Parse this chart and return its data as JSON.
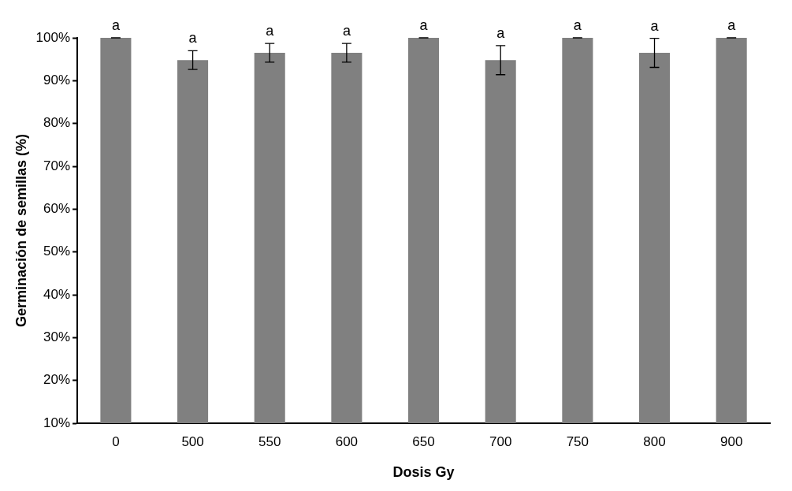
{
  "chart_data": {
    "type": "bar",
    "xlabel": "Dosis Gy",
    "ylabel": "Germinación de semillas (%)",
    "categories": [
      "0",
      "500",
      "550",
      "600",
      "650",
      "700",
      "750",
      "800",
      "900"
    ],
    "values": [
      100,
      94.8,
      96.5,
      96.5,
      100,
      94.8,
      100,
      96.5,
      100
    ],
    "errors": [
      0,
      2.2,
      2.2,
      2.2,
      0,
      3.4,
      0,
      3.4,
      0
    ],
    "color": "#808080",
    "ylim": [
      10,
      100
    ],
    "yticks": [
      {
        "value": 10,
        "label": "10%"
      },
      {
        "value": 20,
        "label": "20%"
      },
      {
        "value": 30,
        "label": "30%"
      },
      {
        "value": 40,
        "label": "40%"
      },
      {
        "value": 50,
        "label": "50%"
      },
      {
        "value": 60,
        "label": "60%"
      },
      {
        "value": 70,
        "label": "70%"
      },
      {
        "value": 80,
        "label": "80%"
      },
      {
        "value": 90,
        "label": "90%"
      },
      {
        "value": 100,
        "label": "100%"
      }
    ],
    "grid": false,
    "legend": false,
    "annotations": [
      {
        "text": "a",
        "x": "0",
        "y": 100
      },
      {
        "text": "a",
        "x": "500",
        "y": 97
      },
      {
        "text": "a",
        "x": "550",
        "y": 98.7
      },
      {
        "text": "a",
        "x": "600",
        "y": 98.7
      },
      {
        "text": "a",
        "x": "650",
        "y": 100
      },
      {
        "text": "a",
        "x": "700",
        "y": 98.2
      },
      {
        "text": "a",
        "x": "750",
        "y": 100
      },
      {
        "text": "a",
        "x": "800",
        "y": 99.9
      },
      {
        "text": "a",
        "x": "900",
        "y": 100
      }
    ]
  }
}
